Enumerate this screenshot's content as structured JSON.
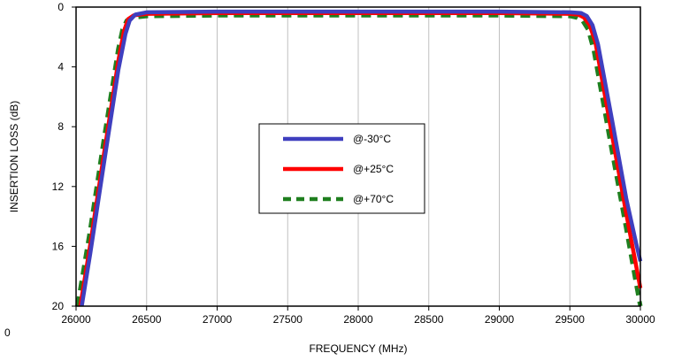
{
  "chart_data": {
    "type": "line",
    "xlabel": "FREQUENCY (MHz)",
    "ylabel": "INSERTION LOSS (dB)",
    "xlim": [
      26000,
      30000
    ],
    "ylim": [
      20,
      0
    ],
    "y_inverted": true,
    "x_ticks": [
      26000,
      26500,
      27000,
      27500,
      28000,
      28500,
      29000,
      29500,
      30000
    ],
    "y_ticks": [
      0,
      4,
      8,
      12,
      16,
      20
    ],
    "grid": "vertical",
    "legend_position": "center",
    "stray_label": "0",
    "series": [
      {
        "name": "@-30°C",
        "color": "#3f3fbf",
        "dash": "solid",
        "x": [
          26040,
          26100,
          26200,
          26300,
          26350,
          26380,
          26420,
          26500,
          27000,
          28000,
          29000,
          29500,
          29580,
          29620,
          29660,
          29700,
          29800,
          29900,
          29970,
          30000
        ],
        "y": [
          20,
          16.5,
          10.3,
          4.2,
          1.8,
          0.9,
          0.5,
          0.35,
          0.3,
          0.3,
          0.3,
          0.35,
          0.4,
          0.6,
          1.2,
          2.5,
          7.6,
          12.8,
          15.8,
          17
        ]
      },
      {
        "name": "@+25°C",
        "color": "#ff0000",
        "dash": "solid",
        "x": [
          26030,
          26100,
          26200,
          26300,
          26340,
          26370,
          26410,
          26500,
          27000,
          28000,
          29000,
          29500,
          29560,
          29600,
          29640,
          29680,
          29800,
          29900,
          29970,
          30000
        ],
        "y": [
          20,
          15.9,
          9.7,
          3.6,
          1.6,
          0.8,
          0.55,
          0.45,
          0.4,
          0.4,
          0.4,
          0.45,
          0.5,
          0.7,
          1.2,
          2.3,
          8.6,
          13.8,
          17.3,
          18.8
        ]
      },
      {
        "name": "@+70°C",
        "color": "#1f7f1f",
        "dash": "dashed",
        "x": [
          26010,
          26100,
          26200,
          26300,
          26330,
          26360,
          26400,
          26500,
          27000,
          28000,
          29000,
          29500,
          29550,
          29590,
          29630,
          29670,
          29800,
          29900,
          29970,
          30000
        ],
        "y": [
          20,
          14.9,
          8.7,
          2.8,
          1.5,
          0.9,
          0.7,
          0.6,
          0.55,
          0.55,
          0.55,
          0.6,
          0.7,
          0.9,
          1.5,
          2.9,
          9.7,
          14.8,
          18.5,
          20
        ]
      }
    ]
  }
}
